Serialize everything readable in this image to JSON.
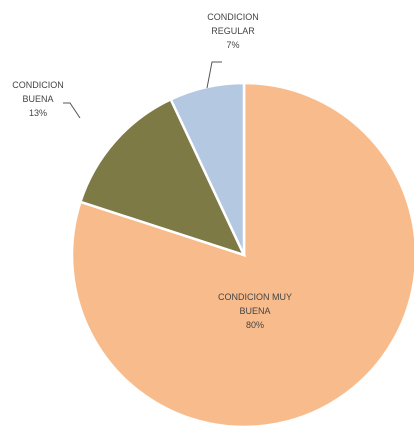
{
  "chart_data": {
    "type": "pie",
    "title": "",
    "slices": [
      {
        "key": "muy_buena",
        "label_lines": [
          "CONDICION MUY",
          "BUENA"
        ],
        "pct_label": "80%",
        "value": 80,
        "color": "#F8BC8C"
      },
      {
        "key": "buena",
        "label_lines": [
          "CONDICION",
          "BUENA"
        ],
        "pct_label": "13%",
        "value": 13,
        "color": "#7E7A46"
      },
      {
        "key": "regular",
        "label_lines": [
          "CONDICION",
          "REGULAR"
        ],
        "pct_label": "7%",
        "value": 7,
        "color": "#B4C8E2"
      }
    ],
    "start": "12 o'clock",
    "direction": "clockwise",
    "legend": "none",
    "data_labels": "category and percentage"
  }
}
